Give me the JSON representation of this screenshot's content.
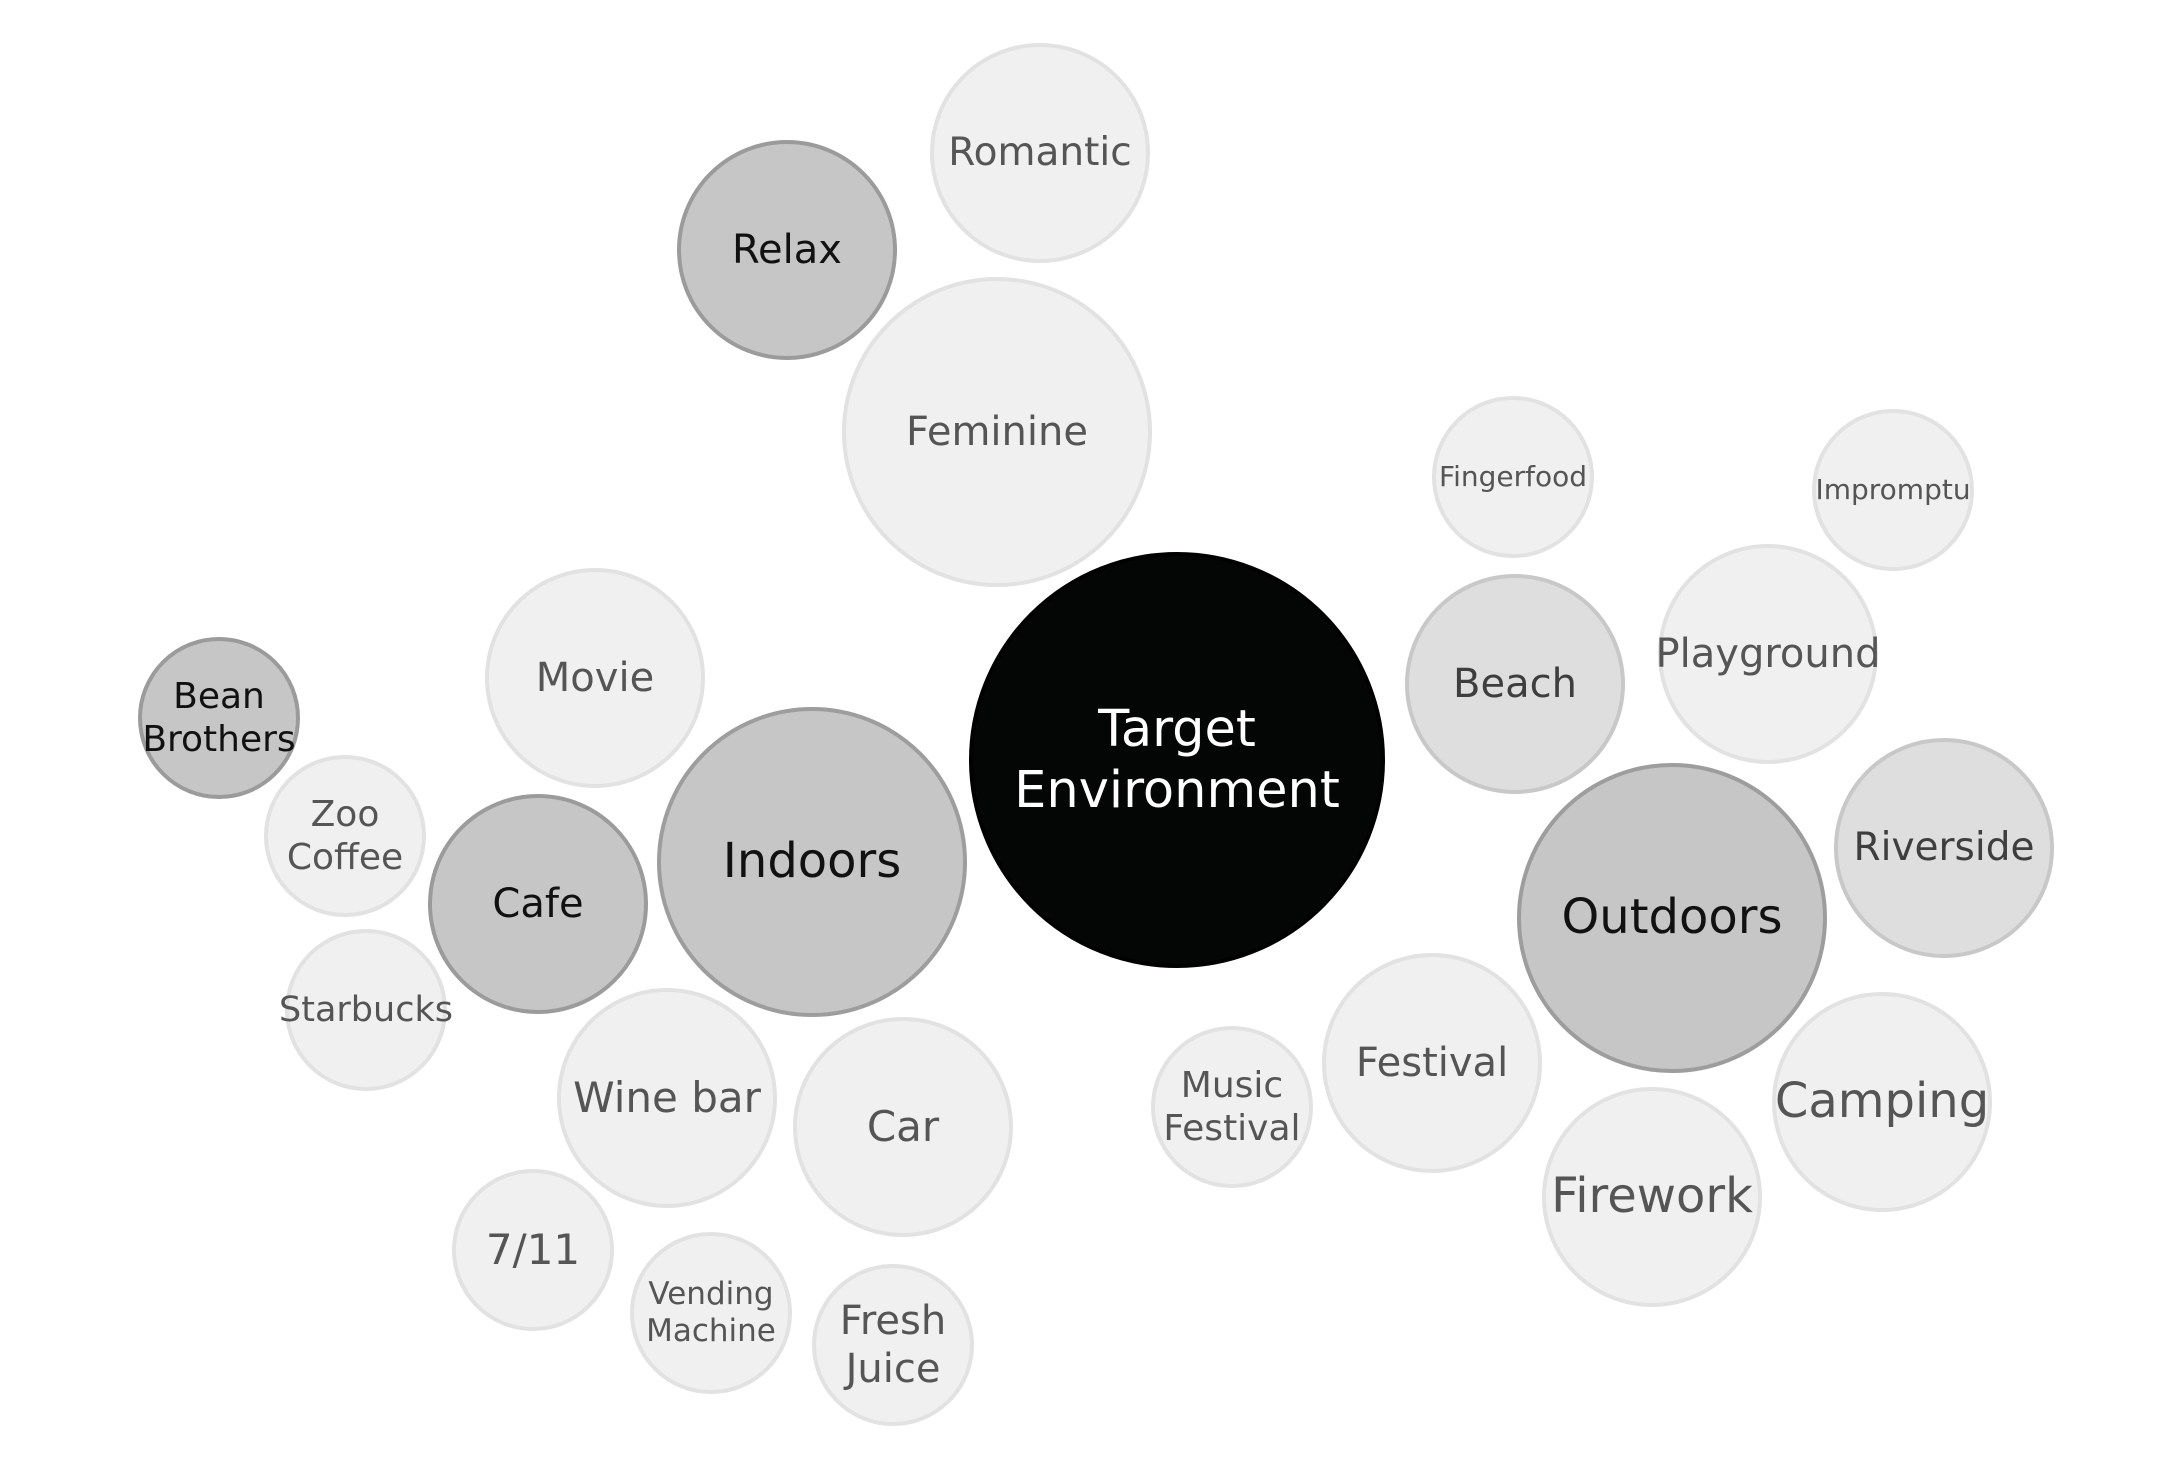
{
  "diagram": {
    "colors": {
      "root": "#040505",
      "main": "#c6c6c6",
      "sub": "#c6c6c6",
      "mid": "#dedede",
      "leaf": "#f0f0f0"
    },
    "bubbles": [
      {
        "id": "target-environment",
        "label": "Target\nEnvironment",
        "level": "root"
      },
      {
        "id": "indoors",
        "label": "Indoors",
        "level": "main"
      },
      {
        "id": "outdoors",
        "label": "Outdoors",
        "level": "main"
      },
      {
        "id": "relax",
        "label": "Relax",
        "level": "sub"
      },
      {
        "id": "cafe",
        "label": "Cafe",
        "level": "sub"
      },
      {
        "id": "bean-brothers",
        "label": "Bean\nBrothers",
        "level": "sub"
      },
      {
        "id": "beach",
        "label": "Beach",
        "level": "mid"
      },
      {
        "id": "riverside",
        "label": "Riverside",
        "level": "mid"
      },
      {
        "id": "romantic",
        "label": "Romantic",
        "level": "leaf"
      },
      {
        "id": "feminine",
        "label": "Feminine",
        "level": "leaf"
      },
      {
        "id": "movie",
        "label": "Movie",
        "level": "leaf"
      },
      {
        "id": "zoo-coffee",
        "label": "Zoo\nCoffee",
        "level": "leaf"
      },
      {
        "id": "starbucks",
        "label": "Starbucks",
        "level": "leaf"
      },
      {
        "id": "wine-bar",
        "label": "Wine bar",
        "level": "leaf"
      },
      {
        "id": "car",
        "label": "Car",
        "level": "leaf"
      },
      {
        "id": "seven-eleven",
        "label": "7/11",
        "level": "leaf"
      },
      {
        "id": "vending-machine",
        "label": "Vending\nMachine",
        "level": "leaf"
      },
      {
        "id": "fresh-juice",
        "label": "Fresh\nJuice",
        "level": "leaf"
      },
      {
        "id": "fingerfood",
        "label": "Fingerfood",
        "level": "leaf"
      },
      {
        "id": "impromptu",
        "label": "Impromptu",
        "level": "leaf"
      },
      {
        "id": "playground",
        "label": "Playground",
        "level": "leaf"
      },
      {
        "id": "music-festival",
        "label": "Music\nFestival",
        "level": "leaf"
      },
      {
        "id": "festival",
        "label": "Festival",
        "level": "leaf"
      },
      {
        "id": "firework",
        "label": "Firework",
        "level": "leaf"
      },
      {
        "id": "camping",
        "label": "Camping",
        "level": "leaf"
      }
    ]
  }
}
